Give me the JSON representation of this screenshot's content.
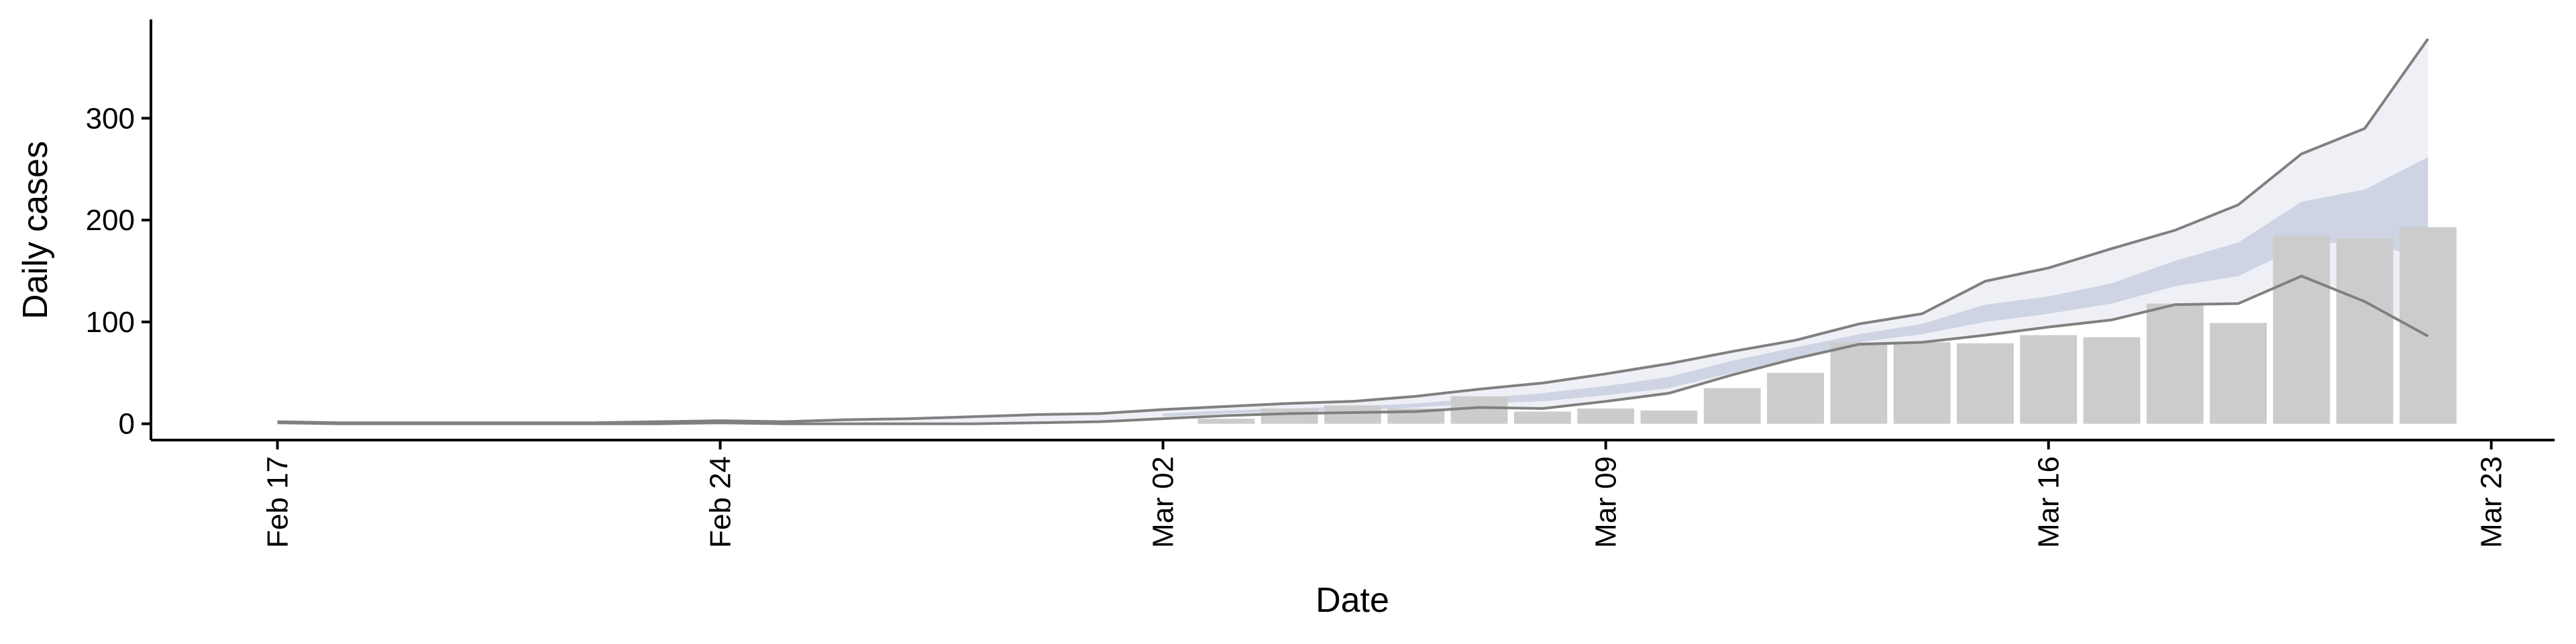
{
  "chart_data": {
    "type": "bar",
    "x_label": "Date",
    "y_label": "Daily cases",
    "x": [
      "Feb 17",
      "Feb 18",
      "Feb 19",
      "Feb 20",
      "Feb 21",
      "Feb 22",
      "Feb 23",
      "Feb 24",
      "Feb 25",
      "Feb 26",
      "Feb 27",
      "Feb 28",
      "Feb 29",
      "Mar 01",
      "Mar 02",
      "Mar 03",
      "Mar 04",
      "Mar 05",
      "Mar 06",
      "Mar 07",
      "Mar 08",
      "Mar 09",
      "Mar 10",
      "Mar 11",
      "Mar 12",
      "Mar 13",
      "Mar 14",
      "Mar 15",
      "Mar 16",
      "Mar 17",
      "Mar 18",
      "Mar 19",
      "Mar 20",
      "Mar 21",
      "Mar 22"
    ],
    "xlim": [
      "Feb 15",
      "Mar 24"
    ],
    "xticks": [
      "Feb 17",
      "Feb 24",
      "Mar 02",
      "Mar 09",
      "Mar 16",
      "Mar 23"
    ],
    "ylim": [
      -16,
      397
    ],
    "yticks": [
      0,
      100,
      200,
      300
    ],
    "series": [
      {
        "type": "band",
        "color": "#eef0f5",
        "lower": [
          1,
          0,
          0,
          0,
          0,
          0,
          0,
          1,
          0,
          0,
          0,
          0,
          1,
          2,
          5,
          8,
          10,
          11,
          12,
          16,
          15,
          22,
          30,
          48,
          64,
          78,
          80,
          87,
          95,
          102,
          117,
          118,
          145,
          120,
          86
        ],
        "upper": [
          2,
          1,
          1,
          1,
          1,
          1,
          2,
          3,
          2,
          4,
          5,
          7,
          9,
          10,
          14,
          17,
          20,
          22,
          27,
          34,
          40,
          49,
          59,
          71,
          82,
          98,
          108,
          140,
          153,
          172,
          190,
          215,
          265,
          290,
          378
        ]
      },
      {
        "type": "band",
        "color": "#cfd4e4",
        "lower": [
          null,
          null,
          null,
          null,
          null,
          null,
          null,
          null,
          null,
          null,
          null,
          null,
          null,
          null,
          7,
          10,
          12,
          13,
          16,
          20,
          22,
          28,
          35,
          50,
          65,
          80,
          88,
          100,
          108,
          118,
          135,
          145,
          175,
          180,
          160
        ],
        "upper": [
          null,
          null,
          null,
          null,
          null,
          null,
          null,
          null,
          null,
          null,
          null,
          null,
          null,
          null,
          10,
          13,
          15,
          17,
          20,
          25,
          30,
          37,
          46,
          62,
          75,
          88,
          98,
          117,
          125,
          138,
          160,
          178,
          218,
          230,
          262
        ]
      },
      {
        "type": "bar",
        "color": "#cccccc",
        "values": [
          null,
          null,
          null,
          null,
          null,
          null,
          null,
          null,
          null,
          null,
          null,
          null,
          null,
          null,
          null,
          5,
          15,
          18,
          15,
          27,
          12,
          15,
          13,
          35,
          50,
          80,
          80,
          79,
          87,
          85,
          118,
          99,
          185,
          182,
          193
        ]
      },
      {
        "type": "line",
        "color": "#808080",
        "values": [
          2,
          1,
          1,
          1,
          1,
          1,
          2,
          3,
          2,
          4,
          5,
          7,
          9,
          10,
          14,
          17,
          20,
          22,
          27,
          34,
          40,
          49,
          59,
          71,
          82,
          98,
          108,
          140,
          153,
          172,
          190,
          215,
          265,
          290,
          378
        ]
      },
      {
        "type": "line",
        "color": "#808080",
        "values": [
          1,
          0,
          0,
          0,
          0,
          0,
          0,
          1,
          0,
          0,
          0,
          0,
          1,
          2,
          5,
          8,
          10,
          11,
          12,
          16,
          15,
          22,
          30,
          48,
          64,
          78,
          80,
          87,
          95,
          102,
          117,
          118,
          145,
          120,
          86
        ]
      }
    ]
  }
}
